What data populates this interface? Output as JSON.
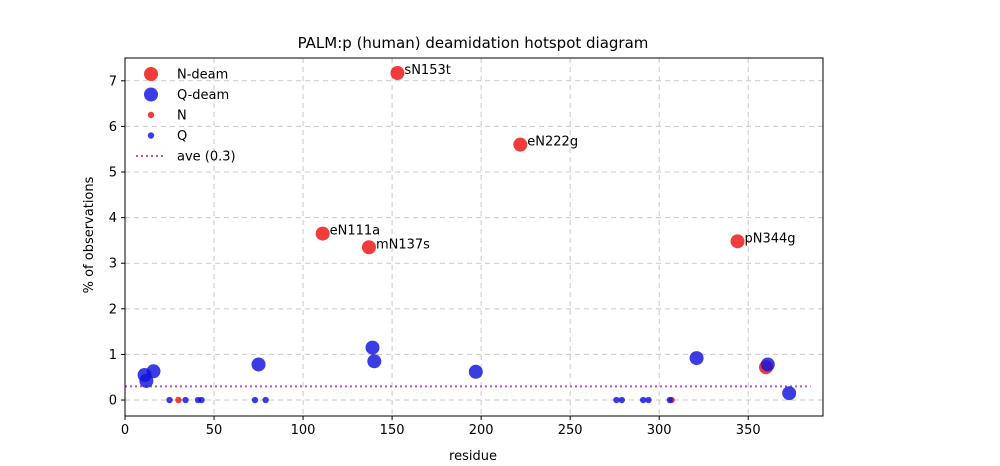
{
  "chart_data": {
    "type": "scatter",
    "title": "PALM:p (human) deamidation hotspot diagram",
    "xlabel": "residue",
    "ylabel": "% of observations",
    "xlim": [
      0,
      392
    ],
    "ylim": [
      -0.35,
      7.5
    ],
    "xticks": [
      0,
      50,
      100,
      150,
      200,
      250,
      300,
      350
    ],
    "yticks": [
      0,
      1,
      2,
      3,
      4,
      5,
      6,
      7
    ],
    "grid": true,
    "legend_position": "top-left",
    "colors": {
      "N": "#ee1111",
      "Q": "#1111dd",
      "ave": "#b94fd4"
    },
    "average": {
      "label": "ave (0.3)",
      "value": 0.3,
      "x_range": [
        0,
        385
      ]
    },
    "series": [
      {
        "name": "N-deam",
        "color": "#ee1111",
        "size": "large",
        "points": [
          {
            "x": 111,
            "y": 3.65,
            "label": "eN111a"
          },
          {
            "x": 137,
            "y": 3.35,
            "label": "mN137s"
          },
          {
            "x": 153,
            "y": 7.17,
            "label": "sN153t"
          },
          {
            "x": 222,
            "y": 5.6,
            "label": "eN222g"
          },
          {
            "x": 344,
            "y": 3.48,
            "label": "pN344g"
          },
          {
            "x": 360,
            "y": 0.72
          }
        ]
      },
      {
        "name": "Q-deam",
        "color": "#1111dd",
        "size": "large",
        "points": [
          {
            "x": 11,
            "y": 0.55
          },
          {
            "x": 12,
            "y": 0.42
          },
          {
            "x": 16,
            "y": 0.63
          },
          {
            "x": 75,
            "y": 0.78
          },
          {
            "x": 139,
            "y": 1.15
          },
          {
            "x": 140,
            "y": 0.85
          },
          {
            "x": 197,
            "y": 0.62
          },
          {
            "x": 321,
            "y": 0.92
          },
          {
            "x": 361,
            "y": 0.78
          },
          {
            "x": 373,
            "y": 0.15
          }
        ]
      },
      {
        "name": "N",
        "color": "#ee1111",
        "size": "small",
        "points": [
          {
            "x": 30,
            "y": 0
          },
          {
            "x": 307,
            "y": 0
          }
        ]
      },
      {
        "name": "Q",
        "color": "#1111dd",
        "size": "small",
        "points": [
          {
            "x": 25,
            "y": 0
          },
          {
            "x": 34,
            "y": 0
          },
          {
            "x": 41,
            "y": 0
          },
          {
            "x": 43,
            "y": 0
          },
          {
            "x": 73,
            "y": 0
          },
          {
            "x": 79,
            "y": 0
          },
          {
            "x": 276,
            "y": 0
          },
          {
            "x": 279,
            "y": 0
          },
          {
            "x": 291,
            "y": 0
          },
          {
            "x": 294,
            "y": 0
          },
          {
            "x": 306,
            "y": 0
          }
        ]
      }
    ]
  }
}
